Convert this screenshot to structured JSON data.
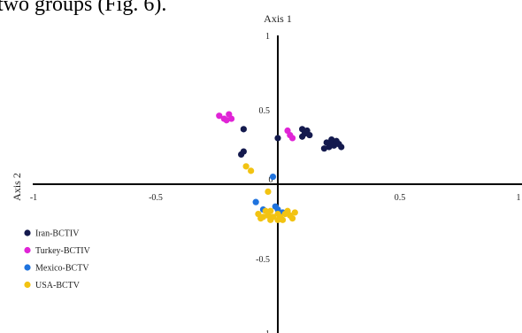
{
  "caption_fragment": "two groups (Fig. 6).",
  "colors": {
    "Iran-BCTIV": "#141a4e",
    "Turkey-BCTIV": "#e024d6",
    "Mexico-BCTV": "#1f73de",
    "USA-BCTV": "#f2c312"
  },
  "chart_data": {
    "type": "scatter",
    "axis1_label": "Axis 1",
    "axis2_label": "Axis 2",
    "xlim": [
      -1,
      1
    ],
    "ylim": [
      -1,
      1
    ],
    "x_ticks": [
      "-1",
      "-0.5",
      "0",
      "0.5",
      "1"
    ],
    "y_ticks": [
      "1",
      "0.5",
      "-0.5",
      "-1"
    ],
    "grid": false,
    "legend_position": "lower-left",
    "series": [
      {
        "name": "Iran-BCTIV",
        "points": [
          [
            -0.14,
            0.37
          ],
          [
            -0.14,
            0.22
          ],
          [
            -0.15,
            0.2
          ],
          [
            0.0,
            0.31
          ],
          [
            0.1,
            0.37
          ],
          [
            0.11,
            0.34
          ],
          [
            0.12,
            0.36
          ],
          [
            0.1,
            0.32
          ],
          [
            0.13,
            0.33
          ],
          [
            0.2,
            0.28
          ],
          [
            0.22,
            0.3
          ],
          [
            0.24,
            0.29
          ],
          [
            0.23,
            0.26
          ],
          [
            0.21,
            0.25
          ],
          [
            0.25,
            0.27
          ],
          [
            0.19,
            0.24
          ],
          [
            0.26,
            0.25
          ],
          [
            0.22,
            0.27
          ]
        ]
      },
      {
        "name": "Turkey-BCTIV",
        "points": [
          [
            -0.24,
            0.46
          ],
          [
            -0.22,
            0.44
          ],
          [
            -0.2,
            0.47
          ],
          [
            -0.21,
            0.43
          ],
          [
            -0.19,
            0.44
          ],
          [
            0.04,
            0.36
          ],
          [
            0.06,
            0.31
          ],
          [
            0.05,
            0.33
          ]
        ]
      },
      {
        "name": "Mexico-BCTV",
        "points": [
          [
            -0.02,
            0.05
          ],
          [
            -0.09,
            -0.12
          ],
          [
            -0.06,
            -0.17
          ],
          [
            0.0,
            -0.17
          ],
          [
            -0.01,
            -0.15
          ],
          [
            0.02,
            -0.19
          ]
        ]
      },
      {
        "name": "USA-BCTV",
        "points": [
          [
            -0.13,
            0.12
          ],
          [
            -0.11,
            0.09
          ],
          [
            -0.04,
            -0.05
          ],
          [
            -0.08,
            -0.2
          ],
          [
            -0.06,
            -0.22
          ],
          [
            -0.04,
            -0.21
          ],
          [
            -0.03,
            -0.18
          ],
          [
            -0.02,
            -0.22
          ],
          [
            0.0,
            -0.2
          ],
          [
            0.01,
            -0.22
          ],
          [
            0.03,
            -0.2
          ],
          [
            0.05,
            -0.21
          ],
          [
            0.07,
            -0.19
          ],
          [
            -0.05,
            -0.18
          ],
          [
            0.04,
            -0.18
          ],
          [
            -0.07,
            -0.23
          ],
          [
            0.06,
            -0.23
          ],
          [
            0.02,
            -0.24
          ],
          [
            -0.03,
            -0.24
          ],
          [
            0.0,
            -0.24
          ]
        ]
      }
    ]
  }
}
